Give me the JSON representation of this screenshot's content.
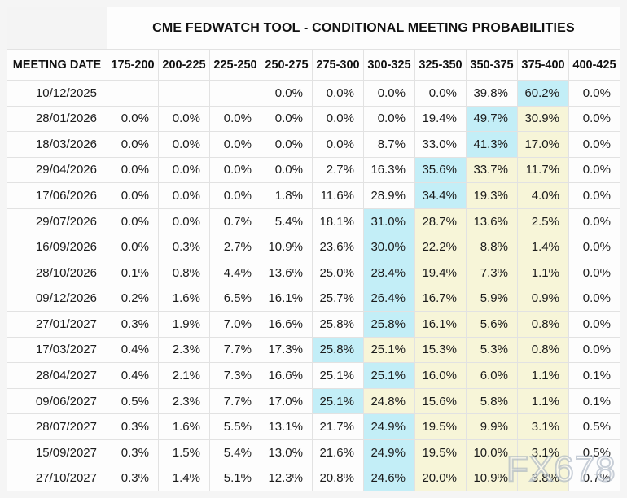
{
  "title": "CME FEDWATCH TOOL - CONDITIONAL MEETING PROBABILITIES",
  "watermark": "FX678",
  "colors": {
    "top_probability_highlight": "#c3eef7",
    "secondary_probability_highlight": "#f7f5d8"
  },
  "chart_data": {
    "type": "table",
    "title": "CME FEDWATCH TOOL - CONDITIONAL MEETING PROBABILITIES",
    "columns": [
      "MEETING DATE",
      "175-200",
      "200-225",
      "225-250",
      "250-275",
      "275-300",
      "300-325",
      "325-350",
      "350-375",
      "375-400",
      "400-425"
    ],
    "highlight_colors": {
      "1": "#c3eef7",
      "2": "#f7f5d8"
    },
    "rows": [
      {
        "date": "10/12/2025",
        "values": [
          "",
          "",
          "",
          "0.0%",
          "0.0%",
          "0.0%",
          "0.0%",
          "39.8%",
          "60.2%",
          "0.0%"
        ],
        "highlights": [
          0,
          0,
          0,
          0,
          0,
          0,
          0,
          0,
          1,
          0
        ]
      },
      {
        "date": "28/01/2026",
        "values": [
          "0.0%",
          "0.0%",
          "0.0%",
          "0.0%",
          "0.0%",
          "0.0%",
          "19.4%",
          "49.7%",
          "30.9%",
          "0.0%"
        ],
        "highlights": [
          0,
          0,
          0,
          0,
          0,
          0,
          0,
          1,
          2,
          0
        ]
      },
      {
        "date": "18/03/2026",
        "values": [
          "0.0%",
          "0.0%",
          "0.0%",
          "0.0%",
          "0.0%",
          "8.7%",
          "33.0%",
          "41.3%",
          "17.0%",
          "0.0%"
        ],
        "highlights": [
          0,
          0,
          0,
          0,
          0,
          0,
          0,
          1,
          2,
          0
        ]
      },
      {
        "date": "29/04/2026",
        "values": [
          "0.0%",
          "0.0%",
          "0.0%",
          "0.0%",
          "2.7%",
          "16.3%",
          "35.6%",
          "33.7%",
          "11.7%",
          "0.0%"
        ],
        "highlights": [
          0,
          0,
          0,
          0,
          0,
          0,
          1,
          2,
          2,
          0
        ]
      },
      {
        "date": "17/06/2026",
        "values": [
          "0.0%",
          "0.0%",
          "0.0%",
          "1.8%",
          "11.6%",
          "28.9%",
          "34.4%",
          "19.3%",
          "4.0%",
          "0.0%"
        ],
        "highlights": [
          0,
          0,
          0,
          0,
          0,
          0,
          1,
          2,
          2,
          0
        ]
      },
      {
        "date": "29/07/2026",
        "values": [
          "0.0%",
          "0.0%",
          "0.7%",
          "5.4%",
          "18.1%",
          "31.0%",
          "28.7%",
          "13.6%",
          "2.5%",
          "0.0%"
        ],
        "highlights": [
          0,
          0,
          0,
          0,
          0,
          1,
          2,
          2,
          2,
          0
        ]
      },
      {
        "date": "16/09/2026",
        "values": [
          "0.0%",
          "0.3%",
          "2.7%",
          "10.9%",
          "23.6%",
          "30.0%",
          "22.2%",
          "8.8%",
          "1.4%",
          "0.0%"
        ],
        "highlights": [
          0,
          0,
          0,
          0,
          0,
          1,
          2,
          2,
          2,
          0
        ]
      },
      {
        "date": "28/10/2026",
        "values": [
          "0.1%",
          "0.8%",
          "4.4%",
          "13.6%",
          "25.0%",
          "28.4%",
          "19.4%",
          "7.3%",
          "1.1%",
          "0.0%"
        ],
        "highlights": [
          0,
          0,
          0,
          0,
          0,
          1,
          2,
          2,
          2,
          0
        ]
      },
      {
        "date": "09/12/2026",
        "values": [
          "0.2%",
          "1.6%",
          "6.5%",
          "16.1%",
          "25.7%",
          "26.4%",
          "16.7%",
          "5.9%",
          "0.9%",
          "0.0%"
        ],
        "highlights": [
          0,
          0,
          0,
          0,
          0,
          1,
          2,
          2,
          2,
          0
        ]
      },
      {
        "date": "27/01/2027",
        "values": [
          "0.3%",
          "1.9%",
          "7.0%",
          "16.6%",
          "25.8%",
          "25.8%",
          "16.1%",
          "5.6%",
          "0.8%",
          "0.0%"
        ],
        "highlights": [
          0,
          0,
          0,
          0,
          0,
          1,
          2,
          2,
          2,
          0
        ]
      },
      {
        "date": "17/03/2027",
        "values": [
          "0.4%",
          "2.3%",
          "7.7%",
          "17.3%",
          "25.8%",
          "25.1%",
          "15.3%",
          "5.3%",
          "0.8%",
          "0.0%"
        ],
        "highlights": [
          0,
          0,
          0,
          0,
          1,
          2,
          2,
          2,
          2,
          0
        ]
      },
      {
        "date": "28/04/2027",
        "values": [
          "0.4%",
          "2.1%",
          "7.3%",
          "16.6%",
          "25.1%",
          "25.1%",
          "16.0%",
          "6.0%",
          "1.1%",
          "0.1%"
        ],
        "highlights": [
          0,
          0,
          0,
          0,
          0,
          1,
          2,
          2,
          2,
          0
        ]
      },
      {
        "date": "09/06/2027",
        "values": [
          "0.5%",
          "2.3%",
          "7.7%",
          "17.0%",
          "25.1%",
          "24.8%",
          "15.6%",
          "5.8%",
          "1.1%",
          "0.1%"
        ],
        "highlights": [
          0,
          0,
          0,
          0,
          1,
          2,
          2,
          2,
          2,
          0
        ]
      },
      {
        "date": "28/07/2027",
        "values": [
          "0.3%",
          "1.6%",
          "5.5%",
          "13.1%",
          "21.7%",
          "24.9%",
          "19.5%",
          "9.9%",
          "3.1%",
          "0.5%"
        ],
        "highlights": [
          0,
          0,
          0,
          0,
          0,
          1,
          2,
          2,
          2,
          0
        ]
      },
      {
        "date": "15/09/2027",
        "values": [
          "0.3%",
          "1.5%",
          "5.4%",
          "13.0%",
          "21.6%",
          "24.9%",
          "19.5%",
          "10.0%",
          "3.1%",
          "0.5%"
        ],
        "highlights": [
          0,
          0,
          0,
          0,
          0,
          1,
          2,
          2,
          2,
          0
        ]
      },
      {
        "date": "27/10/2027",
        "values": [
          "0.3%",
          "1.4%",
          "5.1%",
          "12.3%",
          "20.8%",
          "24.6%",
          "20.0%",
          "10.9%",
          "3.8%",
          "0.7%"
        ],
        "highlights": [
          0,
          0,
          0,
          0,
          0,
          1,
          2,
          2,
          2,
          0
        ]
      }
    ]
  }
}
